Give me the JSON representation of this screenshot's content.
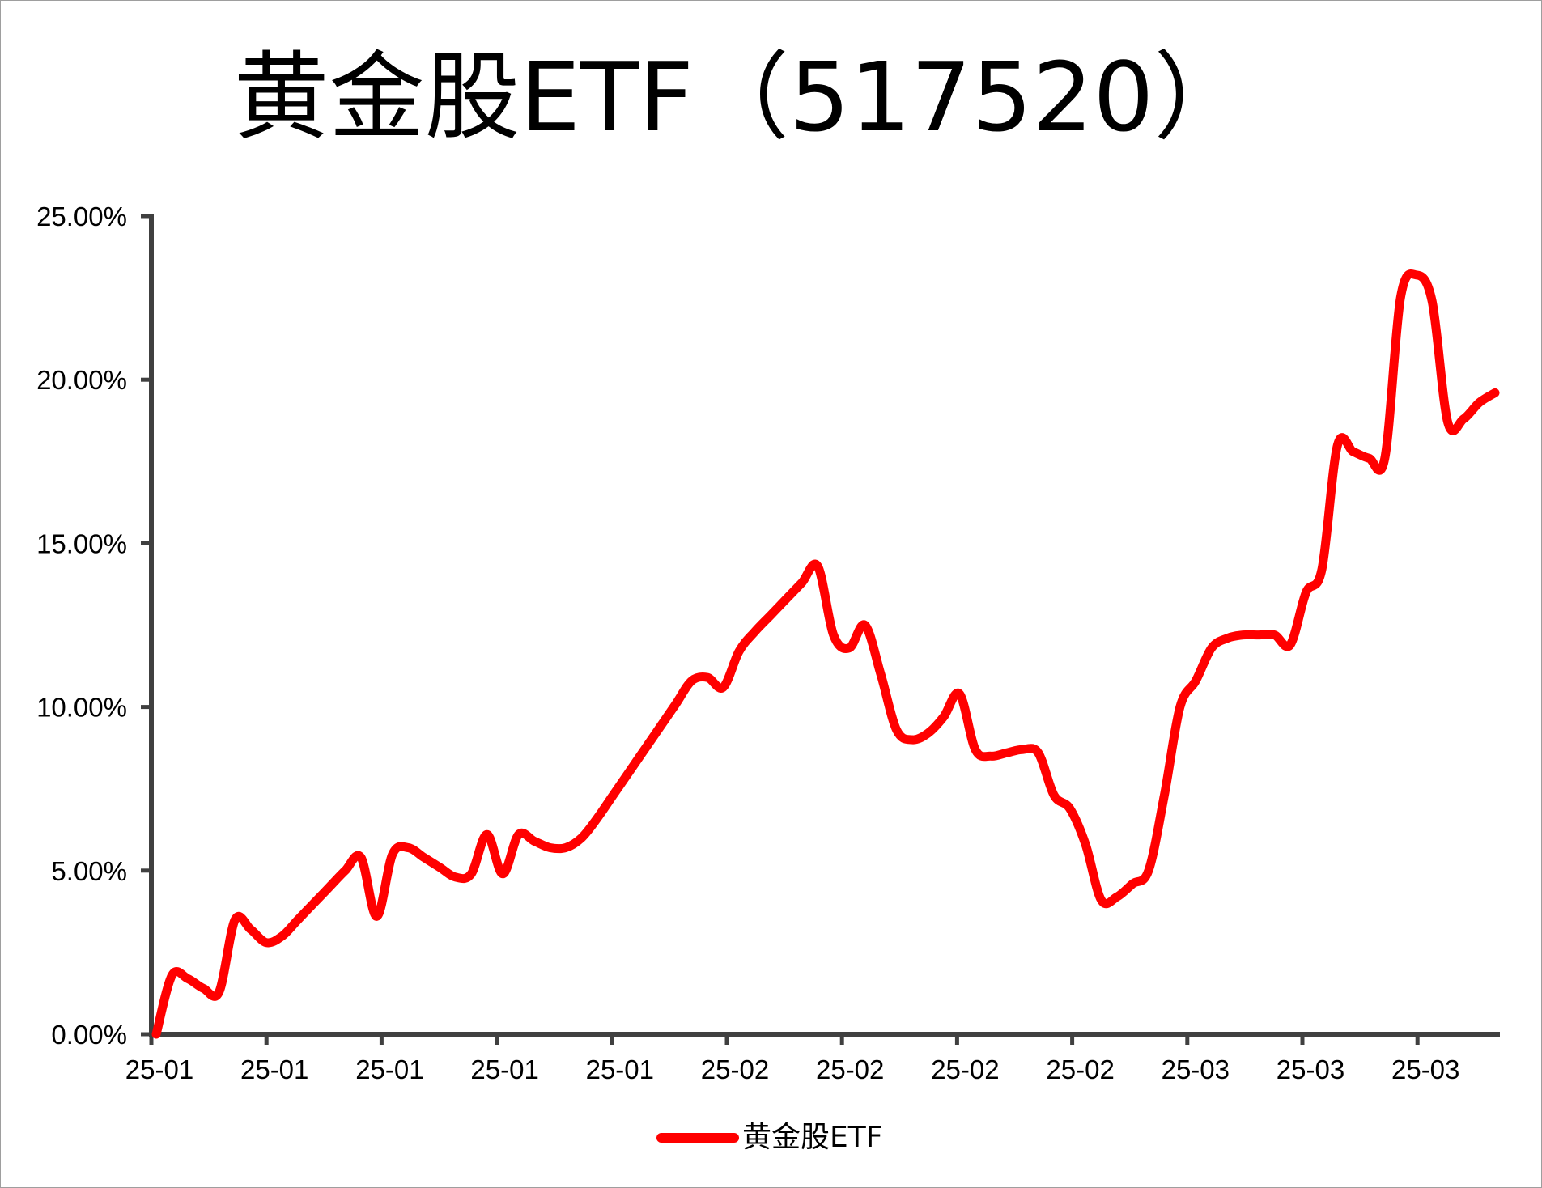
{
  "chart_data": {
    "type": "line",
    "title": "黄金股ETF（517520）",
    "xlabel": "",
    "ylabel": "",
    "ylim": [
      0,
      0.25
    ],
    "y_ticks": [
      0,
      0.05,
      0.1,
      0.15,
      0.2,
      0.25
    ],
    "y_tick_labels": [
      "0.00%",
      "5.00%",
      "10.00%",
      "15.00%",
      "20.00%",
      "25.00%"
    ],
    "x_tick_labels": [
      "25-01",
      "25-01",
      "25-01",
      "25-01",
      "25-01",
      "25-02",
      "25-02",
      "25-02",
      "25-02",
      "25-03",
      "25-03",
      "25-03"
    ],
    "grid": false,
    "legend_position": "bottom",
    "colors": {
      "series": "#ff0000",
      "axis": "#404040"
    },
    "series": [
      {
        "name": "黄金股ETF",
        "values": [
          0.0,
          0.018,
          0.017,
          0.014,
          0.013,
          0.035,
          0.032,
          0.028,
          0.03,
          0.035,
          0.04,
          0.045,
          0.05,
          0.054,
          0.036,
          0.055,
          0.057,
          0.054,
          0.051,
          0.048,
          0.049,
          0.061,
          0.049,
          0.061,
          0.059,
          0.057,
          0.057,
          0.06,
          0.066,
          0.073,
          0.08,
          0.087,
          0.094,
          0.101,
          0.108,
          0.109,
          0.106,
          0.117,
          0.123,
          0.128,
          0.133,
          0.138,
          0.143,
          0.122,
          0.118,
          0.125,
          0.11,
          0.093,
          0.09,
          0.092,
          0.097,
          0.104,
          0.087,
          0.085,
          0.086,
          0.087,
          0.086,
          0.073,
          0.069,
          0.058,
          0.041,
          0.042,
          0.046,
          0.05,
          0.073,
          0.1,
          0.108,
          0.118,
          0.121,
          0.122,
          0.122,
          0.122,
          0.119,
          0.135,
          0.142,
          0.18,
          0.178,
          0.176,
          0.176,
          0.225,
          0.232,
          0.224,
          0.187,
          0.188,
          0.193,
          0.196
        ]
      }
    ]
  }
}
